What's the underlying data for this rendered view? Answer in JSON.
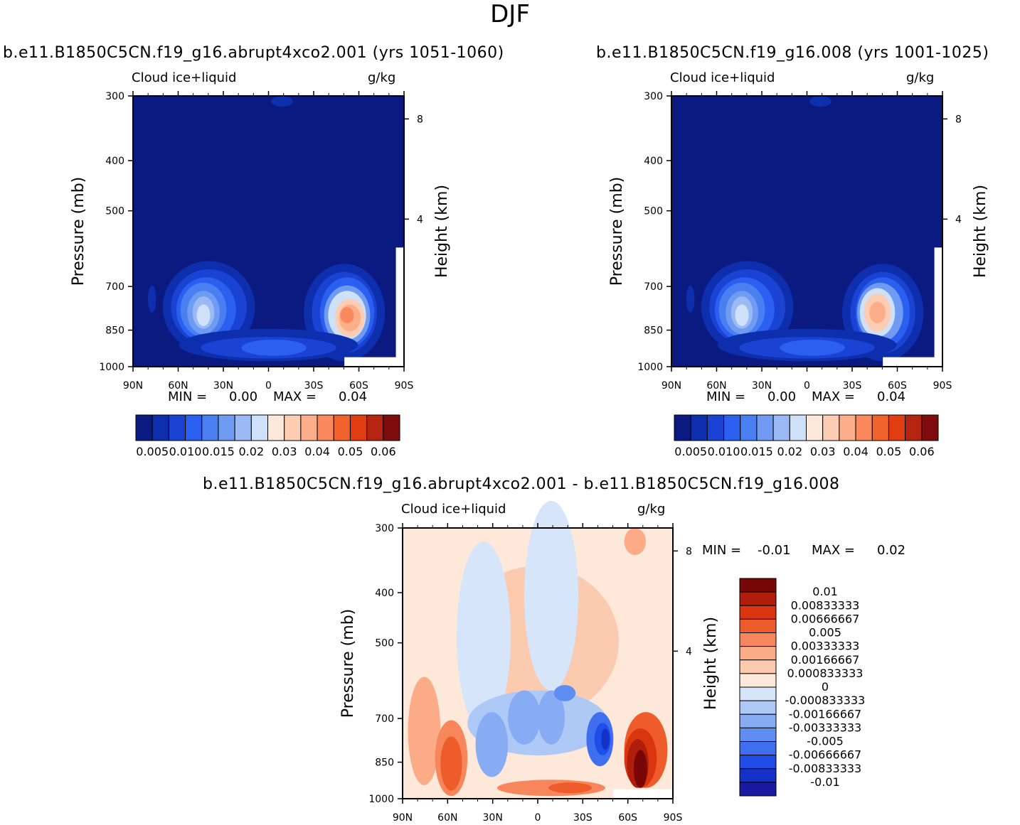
{
  "title": "DJF",
  "colors": {
    "ctrl_scale": [
      "#0b1a80",
      "#0d2fae",
      "#1a43d4",
      "#2a5ff0",
      "#4a7ff2",
      "#6f9cf2",
      "#9bbaf5",
      "#cfe0f9",
      "#fde9dc",
      "#fdcdb3",
      "#fcae8a",
      "#fa8a5e",
      "#f2622c",
      "#e03e12",
      "#b42410",
      "#7e0c0c"
    ],
    "diff_scale": [
      "#1a1aa0",
      "#1532c8",
      "#1f4de8",
      "#3f6fee",
      "#5e8ef2",
      "#87acf4",
      "#afc9f7",
      "#d6e5fa",
      "#fde8da",
      "#fccaaf",
      "#fbac87",
      "#f8865c",
      "#ef5c2c",
      "#d9360f",
      "#b01d0a",
      "#7a0707"
    ]
  },
  "chart_data": [
    {
      "type": "heatmap",
      "id": "left",
      "title": "b.e11.B1850C5CN.f19_g16.abrupt4xco2.001 (yrs 1051-1060)",
      "left_label": "Cloud ice+liquid",
      "right_label": "g/kg",
      "ylabel": "Pressure (mb)",
      "y2label": "Height (km)",
      "xticks": [
        "90N",
        "60N",
        "30N",
        "0",
        "30S",
        "60S",
        "90S"
      ],
      "yticks": [
        "300",
        "400",
        "500",
        "700",
        "850",
        "1000"
      ],
      "y2ticks": [
        "8",
        "4"
      ],
      "min_label": "MIN =",
      "min_value": "0.00",
      "max_label": "MAX =",
      "max_value": "0.04",
      "colorbar_labels": [
        "0.005",
        "0.010",
        "0.015",
        "0.02",
        "0.03",
        "0.04",
        "0.05",
        "0.06"
      ]
    },
    {
      "type": "heatmap",
      "id": "right",
      "title": "b.e11.B1850C5CN.f19_g16.008 (yrs 1001-1025)",
      "left_label": "Cloud ice+liquid",
      "right_label": "g/kg",
      "ylabel": "Pressure (mb)",
      "y2label": "Height (km)",
      "xticks": [
        "90N",
        "60N",
        "30N",
        "0",
        "30S",
        "60S",
        "90S"
      ],
      "yticks": [
        "300",
        "400",
        "500",
        "700",
        "850",
        "1000"
      ],
      "y2ticks": [
        "8",
        "4"
      ],
      "min_label": "MIN =",
      "min_value": "0.00",
      "max_label": "MAX =",
      "max_value": "0.04",
      "colorbar_labels": [
        "0.005",
        "0.010",
        "0.015",
        "0.02",
        "0.03",
        "0.04",
        "0.05",
        "0.06"
      ]
    },
    {
      "type": "heatmap",
      "id": "diff",
      "title": "b.e11.B1850C5CN.f19_g16.abrupt4xco2.001 - b.e11.B1850C5CN.f19_g16.008",
      "left_label": "Cloud ice+liquid",
      "right_label": "g/kg",
      "ylabel": "Pressure (mb)",
      "y2label": "Height (km)",
      "xticks": [
        "90N",
        "60N",
        "30N",
        "0",
        "30S",
        "60S",
        "90S"
      ],
      "yticks": [
        "300",
        "400",
        "500",
        "700",
        "850",
        "1000"
      ],
      "y2ticks": [
        "8",
        "4"
      ],
      "min_label": "MIN =",
      "min_value": "-0.01",
      "max_label": "MAX =",
      "max_value": "0.02",
      "colorbar_labels": [
        "0.01",
        "0.00833333",
        "0.00666667",
        "0.005",
        "0.00333333",
        "0.00166667",
        "0.000833333",
        "0",
        "-0.000833333",
        "-0.00166667",
        "-0.00333333",
        "-0.005",
        "-0.00666667",
        "-0.00833333",
        "-0.01"
      ]
    }
  ]
}
